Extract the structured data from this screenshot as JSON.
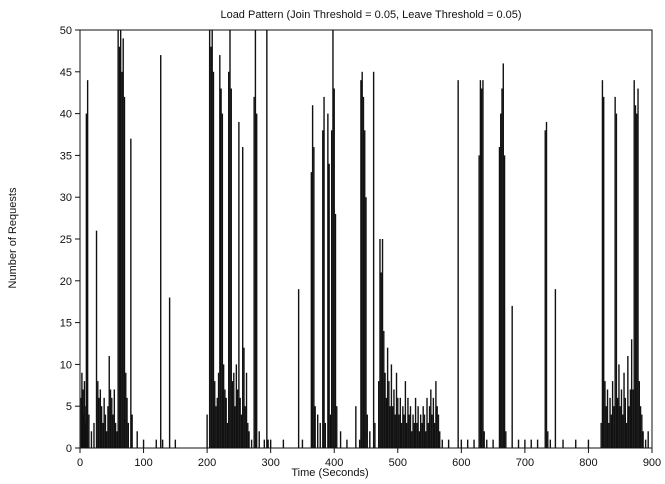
{
  "chart_data": {
    "type": "bar",
    "title": "Load Pattern (Join Threshold = 0.05, Leave Threshold = 0.05)",
    "xlabel": "Time (Seconds)",
    "ylabel": "Number of Requests",
    "xlim": [
      0,
      900
    ],
    "ylim": [
      0,
      50
    ],
    "xticks": [
      0,
      100,
      200,
      300,
      400,
      500,
      600,
      700,
      800,
      900
    ],
    "yticks": [
      0,
      5,
      10,
      15,
      20,
      25,
      30,
      35,
      40,
      45,
      50
    ],
    "grid": false,
    "series": [
      {
        "points": [
          [
            2,
            6
          ],
          [
            3,
            9
          ],
          [
            4,
            5
          ],
          [
            5,
            7
          ],
          [
            6,
            4
          ],
          [
            7,
            8
          ],
          [
            8,
            5
          ],
          [
            9,
            3
          ],
          [
            10,
            40
          ],
          [
            12,
            44
          ],
          [
            14,
            4
          ],
          [
            18,
            2
          ],
          [
            22,
            3
          ],
          [
            26,
            26
          ],
          [
            28,
            8
          ],
          [
            30,
            6
          ],
          [
            32,
            7
          ],
          [
            34,
            5
          ],
          [
            36,
            3
          ],
          [
            38,
            6
          ],
          [
            40,
            4
          ],
          [
            42,
            2
          ],
          [
            44,
            5
          ],
          [
            46,
            11
          ],
          [
            48,
            7
          ],
          [
            50,
            6
          ],
          [
            52,
            4
          ],
          [
            54,
            7
          ],
          [
            56,
            3
          ],
          [
            58,
            2
          ],
          [
            60,
            50
          ],
          [
            62,
            48
          ],
          [
            64,
            50
          ],
          [
            66,
            45
          ],
          [
            68,
            49
          ],
          [
            70,
            42
          ],
          [
            72,
            9
          ],
          [
            74,
            6
          ],
          [
            76,
            3
          ],
          [
            80,
            37
          ],
          [
            82,
            4
          ],
          [
            90,
            2
          ],
          [
            100,
            1
          ],
          [
            120,
            1
          ],
          [
            127,
            47
          ],
          [
            130,
            1
          ],
          [
            141,
            18
          ],
          [
            150,
            1
          ],
          [
            200,
            4
          ],
          [
            204,
            50
          ],
          [
            206,
            48
          ],
          [
            208,
            50
          ],
          [
            210,
            45
          ],
          [
            212,
            8
          ],
          [
            214,
            5
          ],
          [
            216,
            6
          ],
          [
            218,
            9
          ],
          [
            220,
            47
          ],
          [
            222,
            43
          ],
          [
            224,
            40
          ],
          [
            226,
            10
          ],
          [
            228,
            7
          ],
          [
            230,
            6
          ],
          [
            232,
            3
          ],
          [
            234,
            45
          ],
          [
            236,
            50
          ],
          [
            238,
            43
          ],
          [
            240,
            8
          ],
          [
            242,
            9
          ],
          [
            244,
            5
          ],
          [
            246,
            10
          ],
          [
            248,
            7
          ],
          [
            250,
            39
          ],
          [
            252,
            6
          ],
          [
            254,
            4
          ],
          [
            256,
            36
          ],
          [
            258,
            12
          ],
          [
            260,
            5
          ],
          [
            262,
            9
          ],
          [
            264,
            3
          ],
          [
            266,
            2
          ],
          [
            270,
            1
          ],
          [
            274,
            42
          ],
          [
            276,
            50
          ],
          [
            278,
            40
          ],
          [
            282,
            2
          ],
          [
            290,
            1
          ],
          [
            294,
            50
          ],
          [
            296,
            1
          ],
          [
            300,
            1
          ],
          [
            320,
            1
          ],
          [
            344,
            19
          ],
          [
            350,
            1
          ],
          [
            364,
            33
          ],
          [
            366,
            41
          ],
          [
            368,
            36
          ],
          [
            370,
            5
          ],
          [
            374,
            4
          ],
          [
            378,
            3
          ],
          [
            382,
            38
          ],
          [
            384,
            42
          ],
          [
            386,
            3
          ],
          [
            390,
            40
          ],
          [
            392,
            34
          ],
          [
            394,
            4
          ],
          [
            396,
            38
          ],
          [
            398,
            50
          ],
          [
            400,
            43
          ],
          [
            402,
            28
          ],
          [
            404,
            5
          ],
          [
            410,
            2
          ],
          [
            420,
            1
          ],
          [
            434,
            5
          ],
          [
            440,
            1
          ],
          [
            442,
            44
          ],
          [
            444,
            45
          ],
          [
            446,
            42
          ],
          [
            448,
            38
          ],
          [
            450,
            30
          ],
          [
            452,
            4
          ],
          [
            456,
            2
          ],
          [
            462,
            45
          ],
          [
            464,
            3
          ],
          [
            470,
            8
          ],
          [
            472,
            25
          ],
          [
            474,
            21
          ],
          [
            476,
            25
          ],
          [
            478,
            14
          ],
          [
            480,
            9
          ],
          [
            482,
            6
          ],
          [
            484,
            12
          ],
          [
            486,
            8
          ],
          [
            488,
            5
          ],
          [
            490,
            10
          ],
          [
            492,
            5
          ],
          [
            494,
            7
          ],
          [
            496,
            4
          ],
          [
            498,
            9
          ],
          [
            500,
            6
          ],
          [
            502,
            4
          ],
          [
            504,
            6
          ],
          [
            506,
            3
          ],
          [
            508,
            5
          ],
          [
            510,
            4
          ],
          [
            512,
            8
          ],
          [
            514,
            3
          ],
          [
            516,
            6
          ],
          [
            518,
            4
          ],
          [
            520,
            5
          ],
          [
            522,
            2
          ],
          [
            524,
            4
          ],
          [
            526,
            3
          ],
          [
            528,
            6
          ],
          [
            530,
            3
          ],
          [
            532,
            5
          ],
          [
            534,
            2
          ],
          [
            536,
            4
          ],
          [
            538,
            3
          ],
          [
            540,
            5
          ],
          [
            542,
            4
          ],
          [
            544,
            2
          ],
          [
            546,
            6
          ],
          [
            548,
            3
          ],
          [
            550,
            5
          ],
          [
            552,
            7
          ],
          [
            554,
            4
          ],
          [
            556,
            6
          ],
          [
            558,
            3
          ],
          [
            560,
            8
          ],
          [
            562,
            5
          ],
          [
            564,
            4
          ],
          [
            566,
            2
          ],
          [
            570,
            1
          ],
          [
            580,
            1
          ],
          [
            595,
            44
          ],
          [
            600,
            1
          ],
          [
            610,
            1
          ],
          [
            620,
            1
          ],
          [
            628,
            35
          ],
          [
            630,
            44
          ],
          [
            632,
            43
          ],
          [
            634,
            44
          ],
          [
            636,
            2
          ],
          [
            640,
            1
          ],
          [
            650,
            1
          ],
          [
            660,
            36
          ],
          [
            662,
            40
          ],
          [
            664,
            43
          ],
          [
            666,
            46
          ],
          [
            668,
            35
          ],
          [
            670,
            2
          ],
          [
            680,
            17
          ],
          [
            690,
            1
          ],
          [
            700,
            1
          ],
          [
            710,
            1
          ],
          [
            720,
            1
          ],
          [
            732,
            38
          ],
          [
            734,
            39
          ],
          [
            736,
            2
          ],
          [
            740,
            1
          ],
          [
            748,
            19
          ],
          [
            760,
            1
          ],
          [
            780,
            1
          ],
          [
            800,
            1
          ],
          [
            820,
            3
          ],
          [
            822,
            44
          ],
          [
            824,
            42
          ],
          [
            826,
            8
          ],
          [
            828,
            5
          ],
          [
            830,
            7
          ],
          [
            832,
            3
          ],
          [
            834,
            6
          ],
          [
            836,
            4
          ],
          [
            838,
            8
          ],
          [
            840,
            5
          ],
          [
            842,
            42
          ],
          [
            844,
            40
          ],
          [
            846,
            6
          ],
          [
            848,
            10
          ],
          [
            850,
            5
          ],
          [
            852,
            7
          ],
          [
            854,
            4
          ],
          [
            856,
            9
          ],
          [
            858,
            6
          ],
          [
            860,
            3
          ],
          [
            862,
            11
          ],
          [
            864,
            5
          ],
          [
            866,
            7
          ],
          [
            868,
            13
          ],
          [
            870,
            7
          ],
          [
            872,
            44
          ],
          [
            874,
            41
          ],
          [
            876,
            40
          ],
          [
            878,
            43
          ],
          [
            880,
            8
          ],
          [
            882,
            5
          ],
          [
            884,
            4
          ],
          [
            886,
            2
          ],
          [
            890,
            1
          ],
          [
            894,
            2
          ]
        ]
      }
    ]
  },
  "colors": {
    "bars": "#111111",
    "axes": "#111111",
    "background": "#ffffff"
  }
}
